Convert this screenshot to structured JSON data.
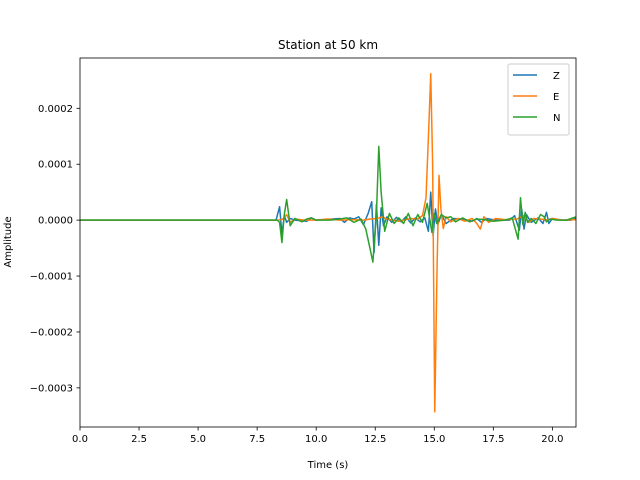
{
  "chart_data": {
    "type": "line",
    "title": "Station at 50 km",
    "xlabel": "Time (s)",
    "ylabel": "Amplitude",
    "xlim": [
      0,
      21
    ],
    "ylim": [
      -0.00037,
      0.00029
    ],
    "xticks": [
      0,
      2.5,
      5,
      7.5,
      10,
      12.5,
      15,
      17.5,
      20
    ],
    "xtick_labels": [
      "0.0",
      "2.5",
      "5.0",
      "7.5",
      "10.0",
      "12.5",
      "15.0",
      "17.5",
      "20.0"
    ],
    "yticks": [
      -0.0003,
      -0.0002,
      -0.0001,
      0,
      0.0001,
      0.0002
    ],
    "ytick_labels": [
      "−0.0003",
      "−0.0002",
      "−0.0001",
      "0.0000",
      "0.0001",
      "0.0002"
    ],
    "grid": false,
    "legend_position": "top-right",
    "series": [
      {
        "name": "Z",
        "color": "#1f77b4",
        "x": [
          0,
          8.3,
          8.45,
          8.55,
          8.65,
          8.75,
          8.9,
          9.1,
          9.6,
          9.8,
          10.0,
          11.0,
          11.2,
          11.4,
          11.6,
          11.8,
          12.0,
          12.2,
          12.35,
          12.45,
          12.55,
          12.65,
          12.75,
          12.85,
          13.0,
          13.2,
          13.4,
          13.6,
          13.8,
          14.0,
          14.2,
          14.4,
          14.6,
          14.75,
          14.85,
          14.95,
          15.05,
          15.15,
          15.3,
          15.5,
          15.8,
          16.2,
          16.6,
          16.8,
          17.0,
          17.2,
          17.6,
          18.2,
          18.4,
          18.6,
          18.7,
          18.8,
          18.9,
          19.1,
          19.4,
          19.6,
          19.75,
          19.85,
          20.0,
          20.4,
          20.8,
          21.0
        ],
        "y": [
          0,
          0,
          2.4e-05,
          -2.5e-05,
          8e-06,
          -4e-06,
          3e-06,
          0,
          -2e-06,
          4e-06,
          0,
          3e-06,
          -4e-06,
          4e-06,
          2e-06,
          6e-06,
          -8e-06,
          1.2e-05,
          3.3e-05,
          -5.8e-05,
          2.8e-05,
          -4.5e-05,
          2.2e-05,
          -1e-05,
          6e-06,
          -4e-06,
          5e-06,
          -3e-06,
          6e-06,
          -5e-06,
          4e-06,
          -3e-06,
          4e-06,
          -2e-05,
          5e-05,
          -2.8e-05,
          2e-05,
          -8e-06,
          1e-05,
          -6e-06,
          3e-06,
          2e-06,
          -2e-06,
          3e-06,
          -4e-06,
          3e-06,
          0,
          0,
          8e-06,
          -1.8e-05,
          2e-05,
          -1.6e-05,
          1e-05,
          -4e-06,
          4e-06,
          -6e-06,
          1.4e-05,
          -6e-06,
          3e-06,
          0,
          0,
          3e-06
        ]
      },
      {
        "name": "E",
        "color": "#ff7f0e",
        "x": [
          0,
          8.4,
          8.6,
          8.75,
          8.9,
          9.1,
          9.5,
          10.0,
          10.5,
          11.0,
          11.5,
          12.0,
          12.3,
          12.6,
          12.8,
          13.0,
          13.5,
          14.0,
          14.3,
          14.5,
          14.65,
          14.78,
          14.85,
          14.93,
          15.02,
          15.12,
          15.2,
          15.28,
          15.38,
          15.5,
          15.7,
          16.0,
          16.3,
          16.6,
          16.8,
          16.95,
          17.1,
          17.3,
          17.6,
          18.0,
          18.5,
          18.8,
          19.0,
          19.2,
          19.5,
          19.8,
          20.0,
          20.4,
          21.0
        ],
        "y": [
          0,
          0,
          2e-06,
          1e-05,
          -4e-06,
          2e-06,
          0,
          0,
          2e-06,
          0,
          1e-06,
          0,
          2e-06,
          3e-06,
          6e-06,
          2e-06,
          -2e-06,
          3e-06,
          2e-06,
          8e-06,
          4e-05,
          0.00018,
          0.000262,
          0.0001,
          -0.000343,
          -8e-05,
          8e-05,
          2e-05,
          -1.5e-05,
          6e-06,
          -3e-06,
          3e-06,
          -2e-06,
          3e-06,
          -6e-06,
          -1.6e-05,
          6e-06,
          -4e-06,
          3e-06,
          1e-06,
          2e-06,
          8e-06,
          -4e-06,
          3e-06,
          2e-06,
          0,
          3e-06,
          0,
          1e-06
        ]
      },
      {
        "name": "N",
        "color": "#2ca02c",
        "x": [
          0,
          8.2,
          8.35,
          8.45,
          8.55,
          8.65,
          8.75,
          8.9,
          9.1,
          9.4,
          9.6,
          9.8,
          10.0,
          10.6,
          11.0,
          11.3,
          11.6,
          11.9,
          12.1,
          12.25,
          12.4,
          12.55,
          12.65,
          12.75,
          12.9,
          13.1,
          13.3,
          13.5,
          13.7,
          13.9,
          14.1,
          14.3,
          14.5,
          14.7,
          14.9,
          15.0,
          15.1,
          15.3,
          15.5,
          15.7,
          15.9,
          16.2,
          16.5,
          16.8,
          17.1,
          17.5,
          18.0,
          18.3,
          18.55,
          18.65,
          18.75,
          18.85,
          18.95,
          19.1,
          19.3,
          19.5,
          19.65,
          19.75,
          19.9,
          20.2,
          20.6,
          21.0
        ],
        "y": [
          0,
          0,
          0,
          -4e-06,
          -4e-05,
          1e-05,
          3.7e-05,
          -1e-05,
          3e-06,
          -3e-06,
          2e-06,
          4e-06,
          0,
          0,
          2e-06,
          4e-06,
          -4e-06,
          2e-06,
          -1.6e-05,
          -4.5e-05,
          -7.5e-05,
          1e-05,
          0.000132,
          5e-05,
          -2e-05,
          1.2e-05,
          -6e-06,
          4e-06,
          -6e-06,
          1.2e-05,
          -1e-05,
          1e-05,
          -4e-06,
          3e-05,
          -2.2e-05,
          1.2e-05,
          -6e-06,
          1e-05,
          4e-06,
          6e-06,
          -3e-06,
          4e-06,
          -3e-06,
          2e-06,
          1e-06,
          -2e-06,
          0,
          4e-06,
          -3.4e-05,
          4e-05,
          -8e-06,
          1.4e-05,
          -4e-06,
          3e-06,
          -6e-06,
          1e-05,
          6e-06,
          -3e-06,
          2e-06,
          0,
          0,
          6e-06
        ]
      }
    ]
  }
}
